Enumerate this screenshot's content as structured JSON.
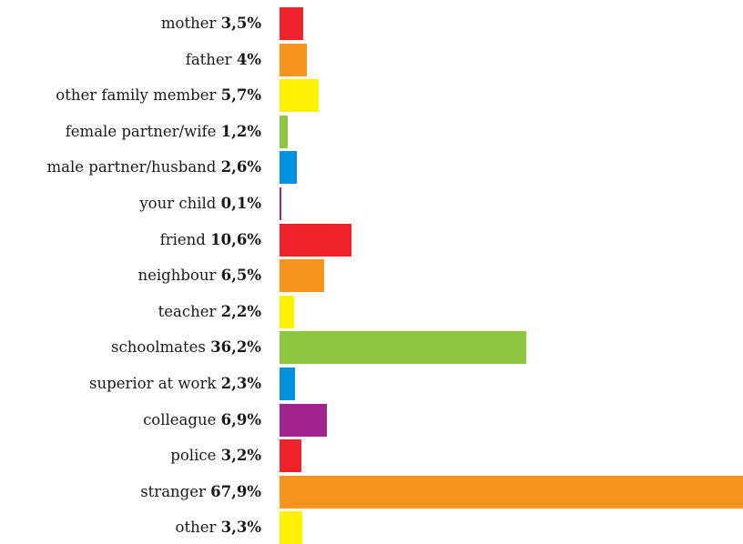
{
  "chart_data": {
    "type": "bar",
    "orientation": "horizontal",
    "categories": [
      "mother",
      "father",
      "other family member",
      "female partner/wife",
      "male partner/husband",
      "your child",
      "friend",
      "neighbour",
      "teacher",
      "schoolmates",
      "superior at work",
      "colleague",
      "police",
      "stranger",
      "other"
    ],
    "values": [
      3.5,
      4,
      5.7,
      1.2,
      2.6,
      0.1,
      10.6,
      6.5,
      2.2,
      36.2,
      2.3,
      6.9,
      3.2,
      67.9,
      3.3
    ],
    "value_labels": [
      "3,5%",
      "4%",
      "5,7%",
      "1,2%",
      "2,6%",
      "0,1%",
      "10,6%",
      "6,5%",
      "2,2%",
      "36,2%",
      "2,3%",
      "6,9%",
      "3,2%",
      "67,9%",
      "3,3%"
    ],
    "colors": [
      "#ee2229",
      "#f7941d",
      "#fff200",
      "#8dc63f",
      "#0092dd",
      "#a2238e",
      "#ee2229",
      "#f7941d",
      "#fff200",
      "#8dc63f",
      "#0092dd",
      "#a2238e",
      "#ee2229",
      "#f7941d",
      "#fff200"
    ],
    "title": "",
    "xlabel": "",
    "ylabel": "",
    "xlim": [
      0,
      67.9
    ],
    "grid": false,
    "legend": "none"
  }
}
